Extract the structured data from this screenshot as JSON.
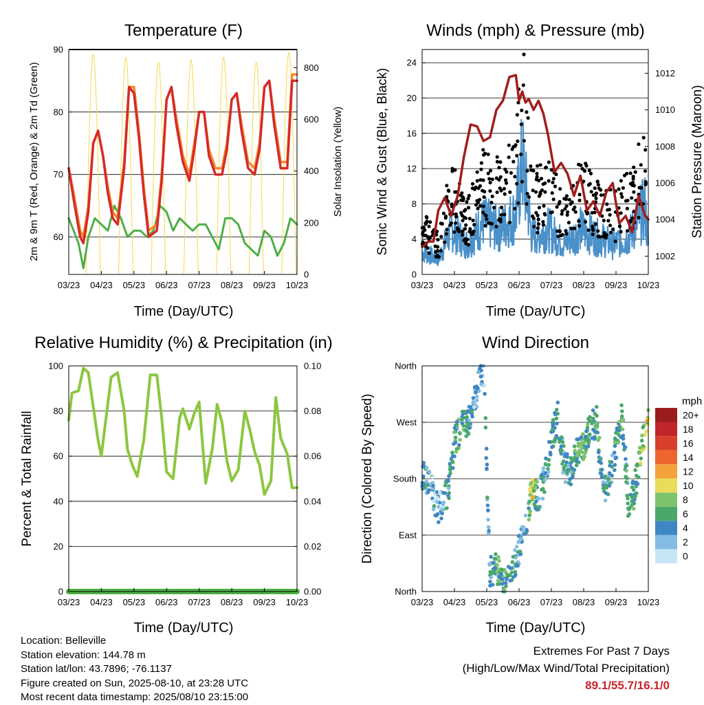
{
  "panels": {
    "temperature": {
      "title": "Temperature (F)",
      "xlabel": "Time (Day/UTC)",
      "ylabel_left": "2m & 9m T (Red, Orange) & 2m Td (Green)",
      "ylabel_right": "Solar Insolation (Yellow)"
    },
    "winds": {
      "title": "Winds (mph) & Pressure (mb)",
      "xlabel": "Time (Day/UTC)",
      "ylabel_left": "Sonic Wind & Gust (Blue, Black)",
      "ylabel_right": "Station Pressure (Maroon)"
    },
    "humidity": {
      "title": "Relative Humidity (%) & Precipitation (in)",
      "xlabel": "Time (Day/UTC)",
      "ylabel_left": "Percent & Total Rainfall"
    },
    "wind_direction": {
      "title": "Wind Direction",
      "xlabel": "Time (Day/UTC)",
      "ylabel_left": "Direction (Colored By Speed)",
      "colorbar_title": "mph"
    }
  },
  "info": {
    "location": "Location: Belleville",
    "elevation": "Station elevation: 144.78 m",
    "latlon": "Station lat/lon: 43.7896; -76.1137",
    "created": "Figure created on Sun, 2025-08-10, at 23:28 UTC",
    "recent": "Most recent data timestamp: 2025/08/10 23:15:00"
  },
  "extremes": {
    "title": "Extremes For Past 7 Days",
    "subtitle": "(High/Low/Max Wind/Total Precipitation)",
    "values": "89.1/55.7/16.1/0"
  },
  "colors": {
    "temp_2m": "#d62a2a",
    "temp_9m": "#f58a2a",
    "dewpoint": "#4cae45",
    "solar": "#f5d94a",
    "wind": "#4a90c9",
    "gust": "#000000",
    "pressure": "#a11d1d",
    "rh": "#8cc63f",
    "precip": "#4cae45"
  },
  "chart_data": [
    {
      "type": "line",
      "name": "temperature",
      "x_ticks": [
        "03/23",
        "04/23",
        "05/23",
        "06/23",
        "07/23",
        "08/23",
        "09/23",
        "10/23"
      ],
      "x_range": [
        0,
        7
      ],
      "ylim_left": [
        54,
        90
      ],
      "yticks_left": [
        60,
        70,
        80,
        90
      ],
      "ylim_right": [
        0,
        870
      ],
      "yticks_right": [
        0,
        200,
        400,
        600,
        800
      ],
      "grid": true,
      "series": [
        {
          "key": "temp_2m",
          "x": [
            0,
            0.15,
            0.35,
            0.45,
            0.6,
            0.75,
            0.9,
            1.05,
            1.2,
            1.35,
            1.5,
            1.7,
            1.85,
            2.0,
            2.15,
            2.3,
            2.45,
            2.7,
            2.85,
            3.0,
            3.15,
            3.3,
            3.5,
            3.7,
            3.85,
            4.0,
            4.15,
            4.3,
            4.5,
            4.7,
            4.85,
            5.0,
            5.15,
            5.3,
            5.5,
            5.7,
            5.85,
            6.0,
            6.15,
            6.3,
            6.5,
            6.7,
            6.85,
            7.0
          ],
          "y": [
            71,
            66,
            60,
            59,
            64,
            75,
            77,
            73,
            67,
            63,
            62,
            71,
            84,
            83,
            76,
            67,
            60,
            61,
            69,
            82,
            84,
            78,
            72,
            69,
            74,
            80,
            80,
            73,
            70,
            70,
            74,
            82,
            83,
            77,
            71,
            70,
            74,
            84,
            85,
            78,
            71,
            71,
            85,
            85
          ]
        },
        {
          "key": "temp_9m",
          "x": [
            0,
            0.15,
            0.35,
            0.45,
            0.6,
            0.75,
            0.9,
            1.05,
            1.2,
            1.35,
            1.5,
            1.7,
            1.85,
            2.0,
            2.15,
            2.3,
            2.45,
            2.7,
            2.85,
            3.0,
            3.15,
            3.3,
            3.5,
            3.7,
            3.85,
            4.0,
            4.15,
            4.3,
            4.5,
            4.7,
            4.85,
            5.0,
            5.15,
            5.3,
            5.5,
            5.7,
            5.85,
            6.0,
            6.15,
            6.3,
            6.5,
            6.7,
            6.85,
            7.0
          ],
          "y": [
            71,
            67,
            61,
            60,
            65,
            75,
            77,
            73,
            68,
            64,
            63,
            72,
            84,
            84,
            77,
            68,
            61,
            62,
            70,
            82,
            84,
            79,
            73,
            70,
            75,
            80,
            80,
            74,
            71,
            71,
            75,
            82,
            83,
            78,
            72,
            71,
            75,
            84,
            85,
            79,
            72,
            72,
            86,
            86
          ]
        },
        {
          "key": "dewpoint",
          "x": [
            0,
            0.3,
            0.45,
            0.6,
            0.8,
            1.0,
            1.2,
            1.4,
            1.6,
            1.8,
            2.0,
            2.2,
            2.4,
            2.6,
            2.8,
            3.0,
            3.2,
            3.4,
            3.6,
            3.8,
            4.0,
            4.2,
            4.4,
            4.6,
            4.8,
            5.0,
            5.2,
            5.4,
            5.6,
            5.8,
            6.0,
            6.2,
            6.4,
            6.6,
            6.8,
            7.0
          ],
          "y": [
            63,
            59,
            55,
            60,
            63,
            62,
            61,
            65,
            63,
            60,
            61,
            61,
            60,
            61,
            65,
            64,
            61,
            63,
            62,
            61,
            62,
            62,
            60,
            58,
            63,
            63,
            62,
            59,
            58,
            57,
            61,
            60,
            57,
            59,
            63,
            62
          ]
        },
        {
          "key": "solar",
          "peaks": [
            0.75,
            1.75,
            2.75,
            3.75,
            4.75,
            5.75,
            6.75
          ],
          "peak_values": [
            850,
            840,
            820,
            830,
            840,
            820,
            860
          ],
          "half_width": 0.22
        }
      ]
    },
    {
      "type": "line",
      "name": "winds",
      "x_ticks": [
        "03/23",
        "04/23",
        "05/23",
        "06/23",
        "07/23",
        "08/23",
        "09/23",
        "10/23"
      ],
      "x_range": [
        0,
        7
      ],
      "ylim_left": [
        0,
        25.5
      ],
      "yticks_left": [
        0,
        4,
        8,
        12,
        16,
        20,
        24
      ],
      "ylim_right": [
        1001,
        1013.3
      ],
      "yticks_right": [
        1002,
        1004,
        1006,
        1008,
        1010,
        1012
      ],
      "grid": true,
      "series": [
        {
          "key": "pressure",
          "x": [
            0,
            0.2,
            0.35,
            0.5,
            0.7,
            0.9,
            1.1,
            1.3,
            1.5,
            1.7,
            1.9,
            2.1,
            2.3,
            2.5,
            2.7,
            2.9,
            3.0,
            3.1,
            3.2,
            3.3,
            3.45,
            3.6,
            3.75,
            3.9,
            4.1,
            4.3,
            4.5,
            4.7,
            4.9,
            5.1,
            5.3,
            5.5,
            5.7,
            5.9,
            6.1,
            6.3,
            6.5,
            6.7,
            6.9,
            7.0
          ],
          "y": [
            1002.5,
            1002.8,
            1002.8,
            1004.5,
            1005.2,
            1004.2,
            1005.3,
            1007.5,
            1009.2,
            1009.1,
            1008.3,
            1008.5,
            1010.0,
            1010.5,
            1011.8,
            1011.9,
            1010.5,
            1011.0,
            1010.4,
            1010.6,
            1010.0,
            1010.5,
            1009.8,
            1008.6,
            1006.6,
            1007.1,
            1006.5,
            1005.3,
            1006.4,
            1004.5,
            1005.0,
            1004.2,
            1005.5,
            1006.0,
            1003.8,
            1004.2,
            1003.3,
            1005.3,
            1004.2,
            1004.0
          ]
        },
        {
          "key": "wind",
          "x": [
            0,
            0.5,
            0.9,
            1.4,
            1.9,
            2.4,
            2.9,
            3.1,
            3.4,
            3.9,
            4.4,
            4.9,
            5.4,
            5.9,
            6.4,
            6.9,
            7.0
          ],
          "y": [
            3,
            2,
            6,
            4,
            7,
            6,
            8,
            15,
            5,
            6,
            4,
            6,
            5,
            4,
            5,
            9,
            4
          ]
        },
        {
          "key": "gust",
          "x": [
            0,
            0.5,
            0.9,
            1.4,
            1.9,
            2.4,
            2.9,
            3.1,
            3.4,
            3.9,
            4.4,
            4.9,
            5.4,
            5.9,
            6.4,
            6.9,
            7.0
          ],
          "y": [
            6,
            4,
            11,
            7,
            12,
            11,
            14,
            23,
            10,
            11,
            8,
            12,
            9,
            8,
            10,
            14,
            7
          ]
        }
      ]
    },
    {
      "type": "line",
      "name": "humidity",
      "x_ticks": [
        "03/23",
        "04/23",
        "05/23",
        "06/23",
        "07/23",
        "08/23",
        "09/23",
        "10/23"
      ],
      "x_range": [
        0,
        7
      ],
      "ylim_left": [
        0,
        100
      ],
      "yticks_left": [
        0,
        20,
        40,
        60,
        80,
        100
      ],
      "ylim_right": [
        0,
        0.1
      ],
      "yticks_right": [
        "0.00",
        "0.02",
        "0.04",
        "0.06",
        "0.08",
        "0.10"
      ],
      "grid": true,
      "series": [
        {
          "key": "rh",
          "x": [
            0,
            0.1,
            0.3,
            0.45,
            0.6,
            0.75,
            0.9,
            1.0,
            1.1,
            1.3,
            1.5,
            1.7,
            1.8,
            1.95,
            2.1,
            2.3,
            2.5,
            2.7,
            2.85,
            3.0,
            3.2,
            3.4,
            3.5,
            3.7,
            3.85,
            4.0,
            4.2,
            4.4,
            4.55,
            4.7,
            4.85,
            5.0,
            5.2,
            5.4,
            5.55,
            5.7,
            5.85,
            6.0,
            6.2,
            6.35,
            6.5,
            6.7,
            6.85,
            7.0
          ],
          "y": [
            76,
            88,
            89,
            99,
            97,
            82,
            67,
            60,
            72,
            95,
            97,
            80,
            63,
            56,
            51,
            67,
            96,
            96,
            77,
            53,
            50,
            77,
            81,
            72,
            79,
            84,
            48,
            63,
            83,
            75,
            58,
            49,
            54,
            80,
            72,
            62,
            56,
            43,
            49,
            86,
            68,
            61,
            46,
            46
          ]
        },
        {
          "key": "precip",
          "x": [
            0,
            7
          ],
          "y": [
            0,
            0
          ]
        }
      ]
    },
    {
      "type": "scatter",
      "name": "wind_direction",
      "x_ticks": [
        "03/23",
        "04/23",
        "05/23",
        "06/23",
        "07/23",
        "08/23",
        "09/23",
        "10/23"
      ],
      "x_range": [
        0,
        7
      ],
      "ytick_labels": [
        "North",
        "East",
        "South",
        "West",
        "North"
      ],
      "yticks": [
        0,
        90,
        180,
        270,
        360
      ],
      "grid": true,
      "colorbar": {
        "title": "mph",
        "labels": [
          "20+",
          "18",
          "16",
          "14",
          "12",
          "10",
          "8",
          "6",
          "4",
          "2",
          "0"
        ],
        "colors": [
          "#9b1c1c",
          "#c0252a",
          "#d8402c",
          "#ee6530",
          "#f5a23d",
          "#e8dd58",
          "#7cc36c",
          "#4aa86b",
          "#3f86c4",
          "#84bce4",
          "#c6e6f6"
        ]
      },
      "series": [
        {
          "key": "direction",
          "x": [
            0,
            0.3,
            0.5,
            0.8,
            1.0,
            1.2,
            1.5,
            1.7,
            1.9,
            2.1,
            2.3,
            2.5,
            2.7,
            2.9,
            3.0,
            3.2,
            3.4,
            3.6,
            3.8,
            4.0,
            4.2,
            4.4,
            4.6,
            4.8,
            5.0,
            5.2,
            5.4,
            5.6,
            5.8,
            6.0,
            6.2,
            6.4,
            6.6,
            6.8,
            7.0
          ],
          "y": [
            190,
            165,
            130,
            160,
            240,
            260,
            280,
            320,
            360,
            30,
            40,
            10,
            20,
            50,
            70,
            110,
            160,
            150,
            180,
            240,
            280,
            200,
            190,
            220,
            230,
            260,
            270,
            160,
            180,
            230,
            280,
            120,
            170,
            230,
            280
          ],
          "speed": [
            3,
            3,
            2,
            5,
            6,
            6,
            4,
            3,
            3,
            4,
            6,
            6,
            6,
            4,
            3,
            4,
            10,
            4,
            4,
            5,
            6,
            4,
            4,
            6,
            6,
            5,
            7,
            4,
            4,
            5,
            6,
            4,
            6,
            8,
            9
          ]
        }
      ]
    }
  ]
}
